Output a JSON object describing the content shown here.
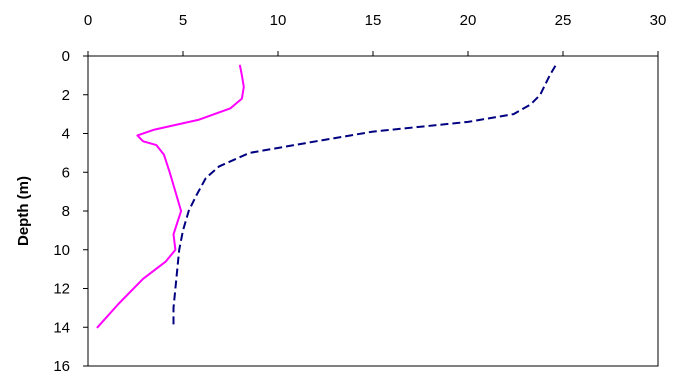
{
  "chart_data": {
    "type": "line",
    "title": "",
    "xlabel": "",
    "ylabel": "Depth (m)",
    "x_axis_position": "top",
    "y_axis_inverted": true,
    "xlim": [
      0,
      30
    ],
    "ylim": [
      0,
      16
    ],
    "x_ticks": [
      "0",
      "5",
      "10",
      "15",
      "20",
      "25",
      "30"
    ],
    "y_ticks": [
      "0",
      "2",
      "4",
      "6",
      "8",
      "10",
      "12",
      "14",
      "16"
    ],
    "grid": false,
    "legend": "none",
    "series": [
      {
        "color": "#ff00ff",
        "dash": "solid",
        "points": [
          {
            "x": 8.0,
            "y": 0.5
          },
          {
            "x": 8.1,
            "y": 1.0
          },
          {
            "x": 8.2,
            "y": 1.6
          },
          {
            "x": 8.1,
            "y": 2.2
          },
          {
            "x": 7.5,
            "y": 2.7
          },
          {
            "x": 5.8,
            "y": 3.3
          },
          {
            "x": 3.5,
            "y": 3.8
          },
          {
            "x": 2.6,
            "y": 4.1
          },
          {
            "x": 2.9,
            "y": 4.4
          },
          {
            "x": 3.6,
            "y": 4.6
          },
          {
            "x": 4.0,
            "y": 5.1
          },
          {
            "x": 4.3,
            "y": 6.0
          },
          {
            "x": 4.6,
            "y": 7.0
          },
          {
            "x": 4.9,
            "y": 8.0
          },
          {
            "x": 4.7,
            "y": 8.6
          },
          {
            "x": 4.5,
            "y": 9.2
          },
          {
            "x": 4.6,
            "y": 10.0
          },
          {
            "x": 4.1,
            "y": 10.6
          },
          {
            "x": 2.9,
            "y": 11.5
          },
          {
            "x": 1.6,
            "y": 12.8
          },
          {
            "x": 0.5,
            "y": 14.0
          }
        ]
      },
      {
        "color": "#000080",
        "dash": "dashed",
        "points": [
          {
            "x": 24.6,
            "y": 0.5
          },
          {
            "x": 24.3,
            "y": 1.0
          },
          {
            "x": 23.8,
            "y": 2.0
          },
          {
            "x": 23.3,
            "y": 2.5
          },
          {
            "x": 22.4,
            "y": 3.0
          },
          {
            "x": 20.0,
            "y": 3.4
          },
          {
            "x": 15.0,
            "y": 3.9
          },
          {
            "x": 12.0,
            "y": 4.4
          },
          {
            "x": 8.5,
            "y": 5.0
          },
          {
            "x": 6.9,
            "y": 5.7
          },
          {
            "x": 6.2,
            "y": 6.3
          },
          {
            "x": 5.7,
            "y": 7.2
          },
          {
            "x": 5.3,
            "y": 8.0
          },
          {
            "x": 5.0,
            "y": 9.0
          },
          {
            "x": 4.8,
            "y": 10.0
          },
          {
            "x": 4.7,
            "y": 11.0
          },
          {
            "x": 4.6,
            "y": 12.0
          },
          {
            "x": 4.5,
            "y": 13.0
          },
          {
            "x": 4.5,
            "y": 14.0
          }
        ]
      }
    ]
  }
}
